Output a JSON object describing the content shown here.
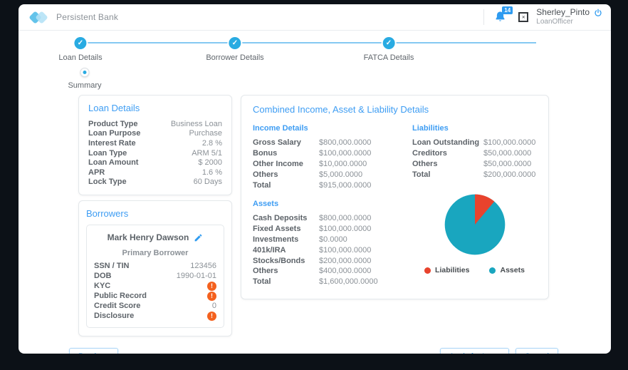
{
  "header": {
    "brand": "Persistent Bank",
    "notification_count": "14",
    "user_name": "Sherley_Pinto",
    "user_role": "LoanOfficer"
  },
  "stepper": {
    "steps": [
      {
        "label": "Loan Details",
        "state": "completed"
      },
      {
        "label": "Borrower Details",
        "state": "completed"
      },
      {
        "label": "FATCA Details",
        "state": "completed"
      },
      {
        "label": "Summary",
        "state": "current"
      }
    ]
  },
  "loan_details": {
    "title": "Loan Details",
    "rows": [
      {
        "label": "Product Type",
        "value": "Business Loan"
      },
      {
        "label": "Loan Purpose",
        "value": "Purchase"
      },
      {
        "label": "Interest Rate",
        "value": "2.8 %"
      },
      {
        "label": "Loan Type",
        "value": "ARM 5/1"
      },
      {
        "label": "Loan Amount",
        "value": "$ 2000"
      },
      {
        "label": "APR",
        "value": "1.6 %"
      },
      {
        "label": "Lock Type",
        "value": "60 Days"
      }
    ]
  },
  "borrowers": {
    "title": "Borrowers",
    "name": "Mark Henry Dawson",
    "subtitle": "Primary Borrower",
    "rows": [
      {
        "label": "SSN / TIN",
        "value": "123456",
        "type": "text"
      },
      {
        "label": "DOB",
        "value": "1990-01-01",
        "type": "text"
      },
      {
        "label": "KYC",
        "value": "!",
        "type": "alert"
      },
      {
        "label": "Public Record",
        "value": "!",
        "type": "alert"
      },
      {
        "label": "Credit Score",
        "value": "0",
        "type": "text"
      },
      {
        "label": "Disclosure",
        "value": "!",
        "type": "alert"
      }
    ]
  },
  "combined": {
    "title": "Combined Income, Asset & Liability Details",
    "income": {
      "title": "Income Details",
      "rows": [
        {
          "label": "Gross Salary",
          "value": "$800,000.0000"
        },
        {
          "label": "Bonus",
          "value": "$100,000.0000"
        },
        {
          "label": "Other Income",
          "value": "$10,000.0000"
        },
        {
          "label": "Others",
          "value": "$5,000.0000"
        },
        {
          "label": "Total",
          "value": "$915,000.0000"
        }
      ]
    },
    "liabilities": {
      "title": "Liabilities",
      "rows": [
        {
          "label": "Loan Outstanding",
          "value": "$100,000.0000"
        },
        {
          "label": "Creditors",
          "value": "$50,000.0000"
        },
        {
          "label": "Others",
          "value": "$50,000.0000"
        },
        {
          "label": "Total",
          "value": "$200,000.0000"
        }
      ]
    },
    "assets": {
      "title": "Assets",
      "rows": [
        {
          "label": "Cash Deposits",
          "value": "$800,000.0000"
        },
        {
          "label": "Fixed Assets",
          "value": "$100,000.0000"
        },
        {
          "label": "Investments",
          "value": "$0.0000"
        },
        {
          "label": "401k/IRA",
          "value": "$100,000.0000"
        },
        {
          "label": "Stocks/Bonds",
          "value": "$200,000.0000"
        },
        {
          "label": "Others",
          "value": "$400,000.0000"
        },
        {
          "label": "Total",
          "value": "$1,600,000.0000"
        }
      ]
    }
  },
  "chart_data": {
    "type": "pie",
    "labels": [
      "Liabilities",
      "Assets"
    ],
    "values": [
      200000,
      1600000
    ],
    "colors": [
      "#e8432d",
      "#19a6bf"
    ],
    "legend_position": "bottom"
  },
  "footer": {
    "previous_label": "Previous",
    "apply_label": "Apply for Loan",
    "cancel_label": "Cancel"
  },
  "colors": {
    "accent_blue": "#2e9bf0",
    "step_complete": "#29abe2",
    "alert_orange": "#f4611e"
  }
}
